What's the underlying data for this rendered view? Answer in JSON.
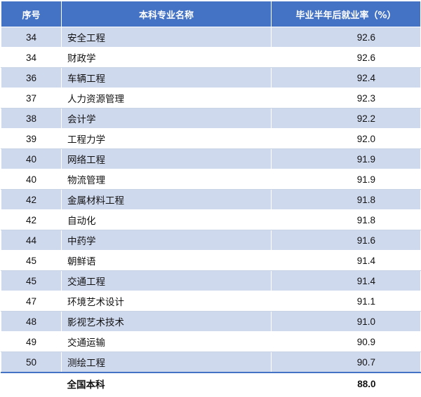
{
  "table": {
    "headers": [
      "序号",
      "本科专业名称",
      "毕业半年后就业率（%）"
    ],
    "rows": [
      {
        "rank": "34",
        "major": "安全工程",
        "rate": "92.6"
      },
      {
        "rank": "34",
        "major": "财政学",
        "rate": "92.6"
      },
      {
        "rank": "36",
        "major": "车辆工程",
        "rate": "92.4"
      },
      {
        "rank": "37",
        "major": "人力资源管理",
        "rate": "92.3"
      },
      {
        "rank": "38",
        "major": "会计学",
        "rate": "92.2"
      },
      {
        "rank": "39",
        "major": "工程力学",
        "rate": "92.0"
      },
      {
        "rank": "40",
        "major": "网络工程",
        "rate": "91.9"
      },
      {
        "rank": "40",
        "major": "物流管理",
        "rate": "91.9"
      },
      {
        "rank": "42",
        "major": "金属材料工程",
        "rate": "91.8"
      },
      {
        "rank": "42",
        "major": "自动化",
        "rate": "91.8"
      },
      {
        "rank": "44",
        "major": "中药学",
        "rate": "91.6"
      },
      {
        "rank": "45",
        "major": "朝鲜语",
        "rate": "91.4"
      },
      {
        "rank": "45",
        "major": "交通工程",
        "rate": "91.4"
      },
      {
        "rank": "47",
        "major": "环境艺术设计",
        "rate": "91.1"
      },
      {
        "rank": "48",
        "major": "影视艺术技术",
        "rate": "91.0"
      },
      {
        "rank": "49",
        "major": "交通运输",
        "rate": "90.9"
      },
      {
        "rank": "50",
        "major": "测绘工程",
        "rate": "90.7"
      }
    ],
    "footer": {
      "rank": "",
      "major": "全国本科",
      "rate": "88.0"
    }
  },
  "colors": {
    "header_bg": "#4472c4",
    "stripe_bg": "#cfd9ee"
  }
}
